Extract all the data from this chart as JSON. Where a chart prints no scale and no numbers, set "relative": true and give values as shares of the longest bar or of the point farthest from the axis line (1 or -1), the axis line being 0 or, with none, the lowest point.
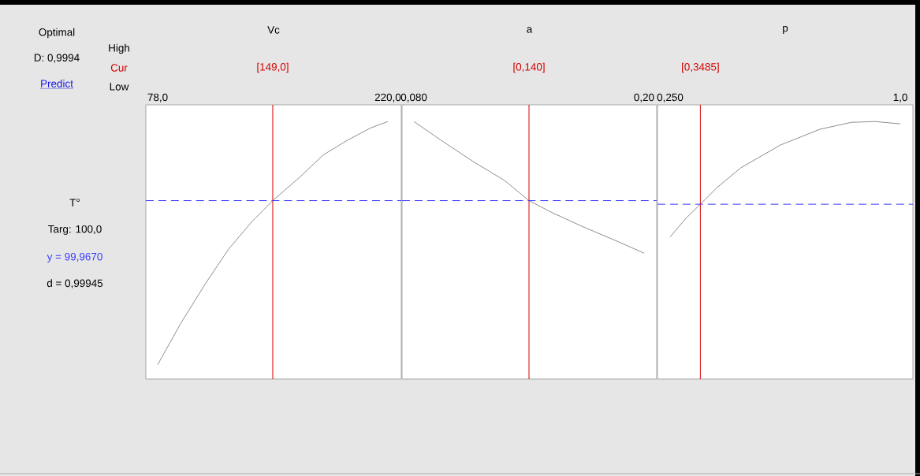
{
  "chart_data": [
    {
      "type": "line",
      "title": "Vc",
      "ylabel": "T°",
      "relative": true,
      "color": "#404040",
      "xlim": [
        70.7,
        228.3
      ],
      "xticks": [
        {
          "value": 78,
          "label": "78,0"
        },
        {
          "value": 220,
          "label": "220,0"
        }
      ],
      "x": [
        78,
        92.6,
        107.2,
        121.8,
        136.4,
        149,
        165.5,
        180.1,
        194.7,
        209.3,
        220
      ],
      "values": [
        0.056,
        0.22,
        0.368,
        0.505,
        0.613,
        0.693,
        0.783,
        0.87,
        0.926,
        0.975,
        1.0
      ],
      "ref_lines": [
        {
          "axis": "x",
          "value": 149,
          "label": "[149,0]",
          "color": "#d40000"
        },
        {
          "axis": "y",
          "value": 0.693,
          "label": "y = 99,9670",
          "color": "#3a3aff",
          "line_style": "dashed"
        }
      ],
      "annotations": [
        "Optimal",
        "D: 0,9994",
        "Predict",
        "High",
        "Cur",
        "Low",
        "Targ: 100,0",
        "d = 0,99945"
      ]
    },
    {
      "type": "line",
      "title": "a",
      "relative": true,
      "color": "#404040",
      "xlim": [
        0.0738,
        0.2066
      ],
      "xticks": [
        {
          "value": 0.08,
          "label": "0,080"
        },
        {
          "value": 0.2,
          "label": "0,20"
        }
      ],
      "x": [
        0.08,
        0.0944,
        0.1108,
        0.1273,
        0.14,
        0.1519,
        0.1683,
        0.1848,
        0.2
      ],
      "values": [
        1.0,
        0.926,
        0.845,
        0.771,
        0.693,
        0.647,
        0.591,
        0.539,
        0.489
      ],
      "ref_lines": [
        {
          "axis": "x",
          "value": 0.14,
          "label": "[0,140]",
          "color": "#d40000"
        },
        {
          "axis": "y",
          "value": 0.693,
          "color": "#3a3aff",
          "line_style": "dashed"
        }
      ]
    },
    {
      "type": "line",
      "title": "p",
      "relative": true,
      "color": "#404040",
      "xlim": [
        0.2089,
        1.041
      ],
      "xticks": [
        {
          "value": 0.25,
          "label": "0,250"
        },
        {
          "value": 1.0,
          "label": "1,0"
        }
      ],
      "x": [
        0.25,
        0.3014,
        0.3485,
        0.4041,
        0.4812,
        0.6096,
        0.738,
        0.8408,
        0.9178,
        1.0
      ],
      "values": [
        0.552,
        0.624,
        0.679,
        0.745,
        0.821,
        0.909,
        0.97,
        0.997,
        1.0,
        0.991
      ],
      "ref_lines": [
        {
          "axis": "x",
          "value": 0.3485,
          "label": "[0,3485]",
          "color": "#d40000"
        },
        {
          "axis": "y",
          "value": 0.679,
          "color": "#3a3aff",
          "line_style": "dashed"
        }
      ]
    }
  ]
}
